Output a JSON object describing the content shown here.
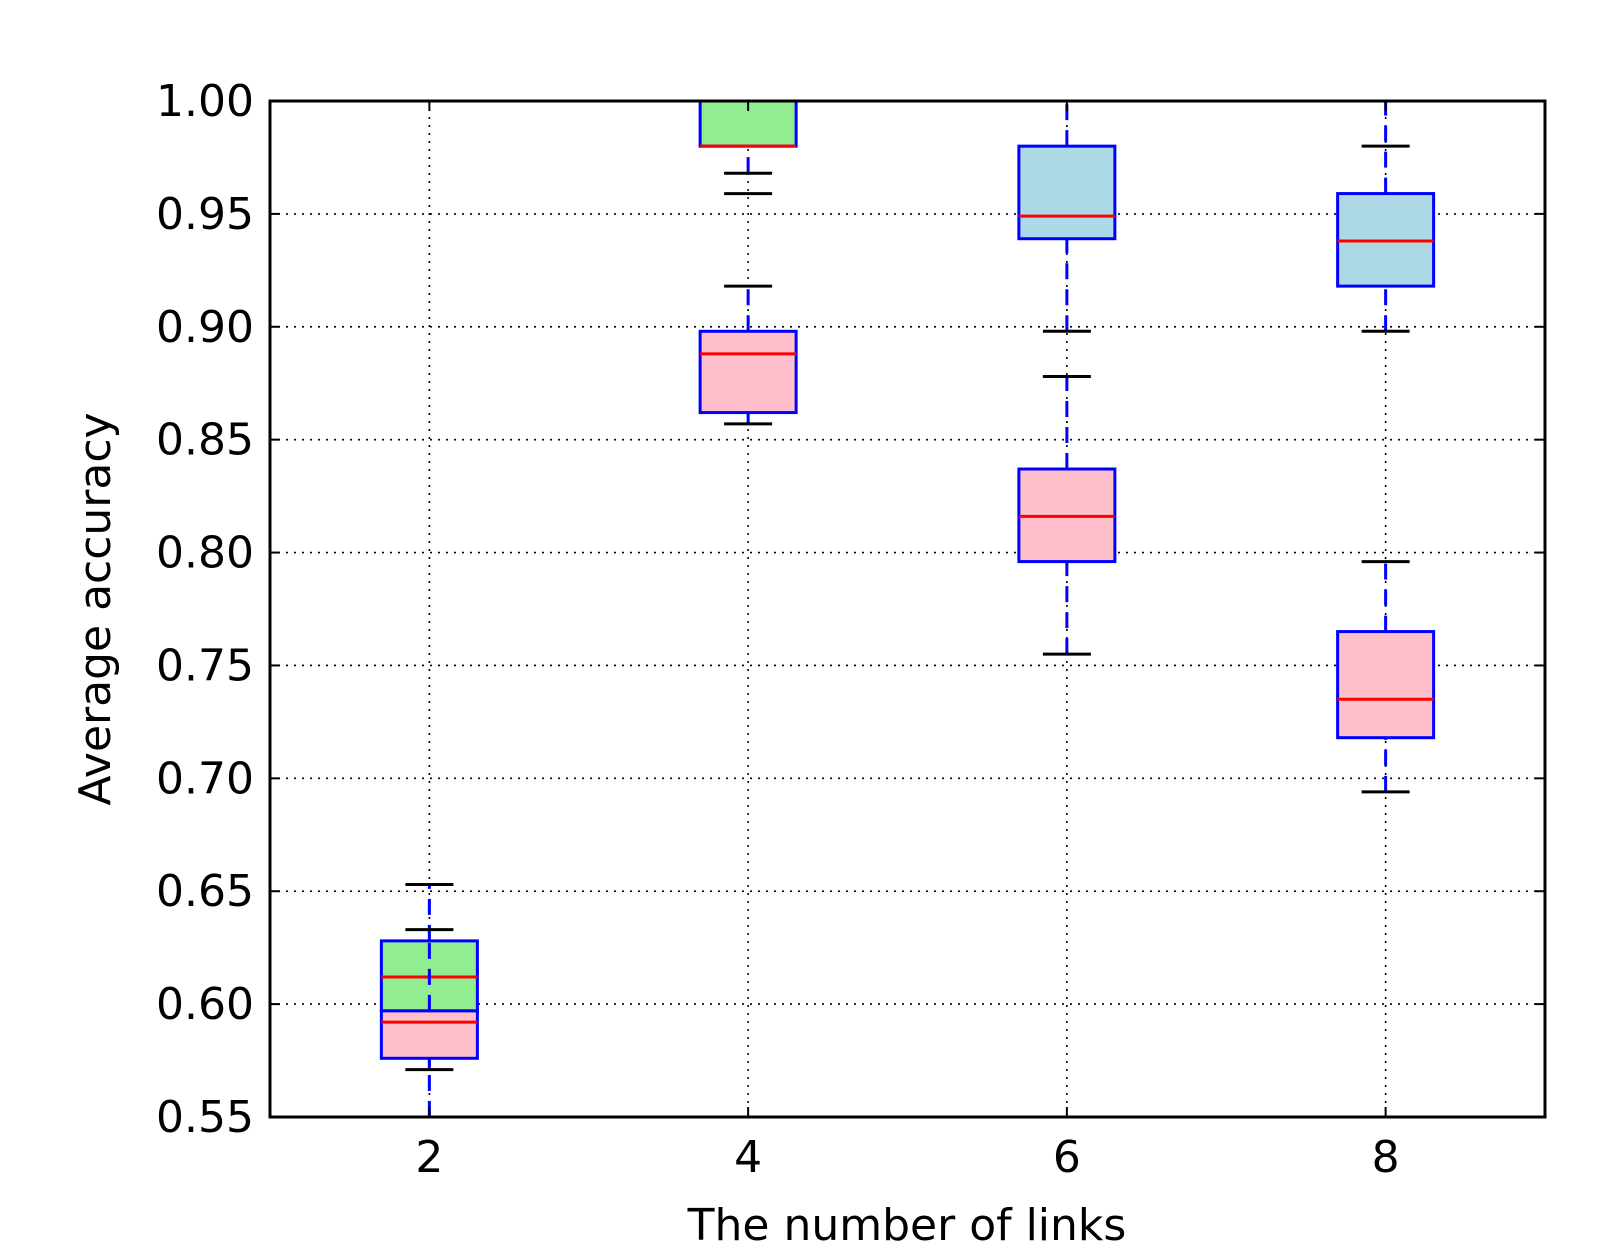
{
  "chart_data": {
    "type": "box",
    "title": "",
    "xlabel": "The number of links",
    "ylabel": "Average accuracy",
    "xlim": [
      1,
      9
    ],
    "ylim": [
      0.55,
      1.0
    ],
    "xticks": [
      2,
      4,
      6,
      8
    ],
    "yticks": [
      0.55,
      0.6,
      0.65,
      0.7,
      0.75,
      0.8,
      0.85,
      0.9,
      0.95,
      1.0
    ],
    "ytick_labels": [
      "0.55",
      "0.60",
      "0.65",
      "0.70",
      "0.75",
      "0.80",
      "0.85",
      "0.90",
      "0.95",
      "1.00"
    ],
    "grid": true,
    "colors": {
      "box_edge": "#0000ff",
      "median": "#ff0000",
      "whisker": "#0000ff",
      "cap": "#000000",
      "series_a_fill": "#90ee90",
      "series_b_fill": "#add8e6",
      "series_c_fill": "#ffc0cb"
    },
    "series": [
      {
        "fill": "series_a_fill",
        "boxes": [
          {
            "x": 2,
            "whislo": 0.55,
            "q1": 0.597,
            "med": 0.612,
            "q3": 0.628,
            "whishi": 0.653
          },
          {
            "x": 4,
            "whislo": 0.968,
            "q1": 0.98,
            "med": 0.98,
            "q3": 1.0,
            "whishi": 1.0
          }
        ]
      },
      {
        "fill": "series_b_fill",
        "boxes": [
          {
            "x": 6,
            "whislo": 0.898,
            "q1": 0.939,
            "med": 0.949,
            "q3": 0.98,
            "whishi": 1.0
          },
          {
            "x": 8,
            "whislo": 0.898,
            "q1": 0.918,
            "med": 0.938,
            "q3": 0.959,
            "whishi": 1.0
          }
        ]
      },
      {
        "fill": "series_c_fill",
        "boxes": [
          {
            "x": 2,
            "whislo": 0.571,
            "q1": 0.576,
            "med": 0.592,
            "q3": 0.597,
            "whishi": 0.633
          },
          {
            "x": 4,
            "whislo": 0.857,
            "q1": 0.862,
            "med": 0.888,
            "q3": 0.898,
            "whishi": 0.918
          },
          {
            "x": 6,
            "whislo": 0.755,
            "q1": 0.796,
            "med": 0.816,
            "q3": 0.837,
            "whishi": 0.878
          },
          {
            "x": 8,
            "whislo": 0.694,
            "q1": 0.718,
            "med": 0.735,
            "q3": 0.765,
            "whishi": 0.796
          }
        ]
      }
    ],
    "caps_extra": [
      {
        "x": 4,
        "y": 0.959
      },
      {
        "x": 6,
        "y": 1.0
      },
      {
        "x": 8,
        "y": 0.98
      }
    ]
  }
}
